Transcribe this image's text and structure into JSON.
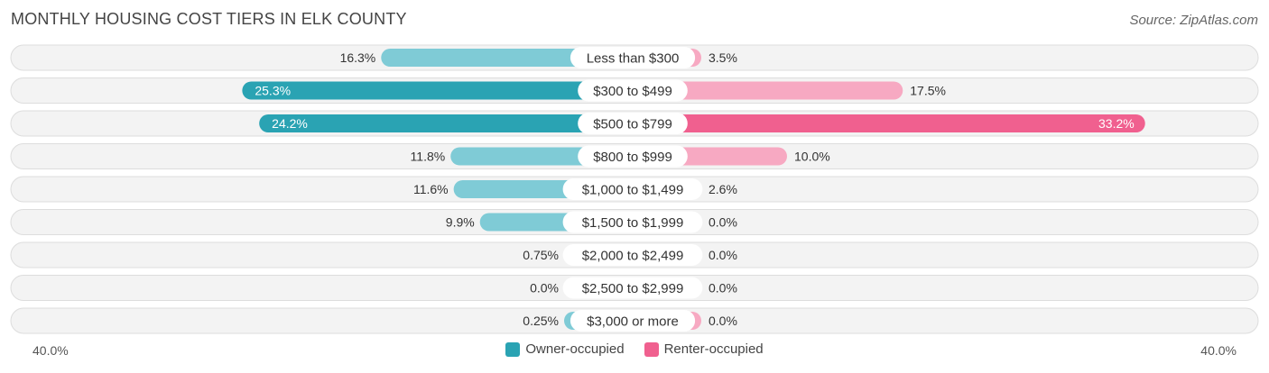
{
  "title": "MONTHLY HOUSING COST TIERS IN ELK COUNTY",
  "source": "Source: ZipAtlas.com",
  "axis": {
    "left_label": "40.0%",
    "right_label": "40.0%"
  },
  "legend": [
    {
      "label": "Owner-occupied",
      "color": "#2aa3b3"
    },
    {
      "label": "Renter-occupied",
      "color": "#f0608f"
    }
  ],
  "chart_data": {
    "type": "bar",
    "orientation": "diverging-horizontal",
    "xlim": [
      -40,
      40
    ],
    "categories": [
      "Less than $300",
      "$300 to $499",
      "$500 to $799",
      "$800 to $999",
      "$1,000 to $1,499",
      "$1,500 to $1,999",
      "$2,000 to $2,499",
      "$2,500 to $2,999",
      "$3,000 or more"
    ],
    "series": [
      {
        "name": "Owner-occupied",
        "values": [
          16.3,
          25.3,
          24.2,
          11.8,
          11.6,
          9.9,
          0.75,
          0.0,
          0.25
        ],
        "labels": [
          "16.3%",
          "25.3%",
          "24.2%",
          "11.8%",
          "11.6%",
          "9.9%",
          "0.75%",
          "0.0%",
          "0.25%"
        ],
        "color": "#2aa3b3",
        "light_color": "#7fcbd6"
      },
      {
        "name": "Renter-occupied",
        "values": [
          3.5,
          17.5,
          33.2,
          10.0,
          2.6,
          0.0,
          0.0,
          0.0,
          0.0
        ],
        "labels": [
          "3.5%",
          "17.5%",
          "33.2%",
          "10.0%",
          "2.6%",
          "0.0%",
          "0.0%",
          "0.0%",
          "0.0%"
        ],
        "color": "#f0608f",
        "light_color": "#f7a9c2"
      }
    ]
  }
}
